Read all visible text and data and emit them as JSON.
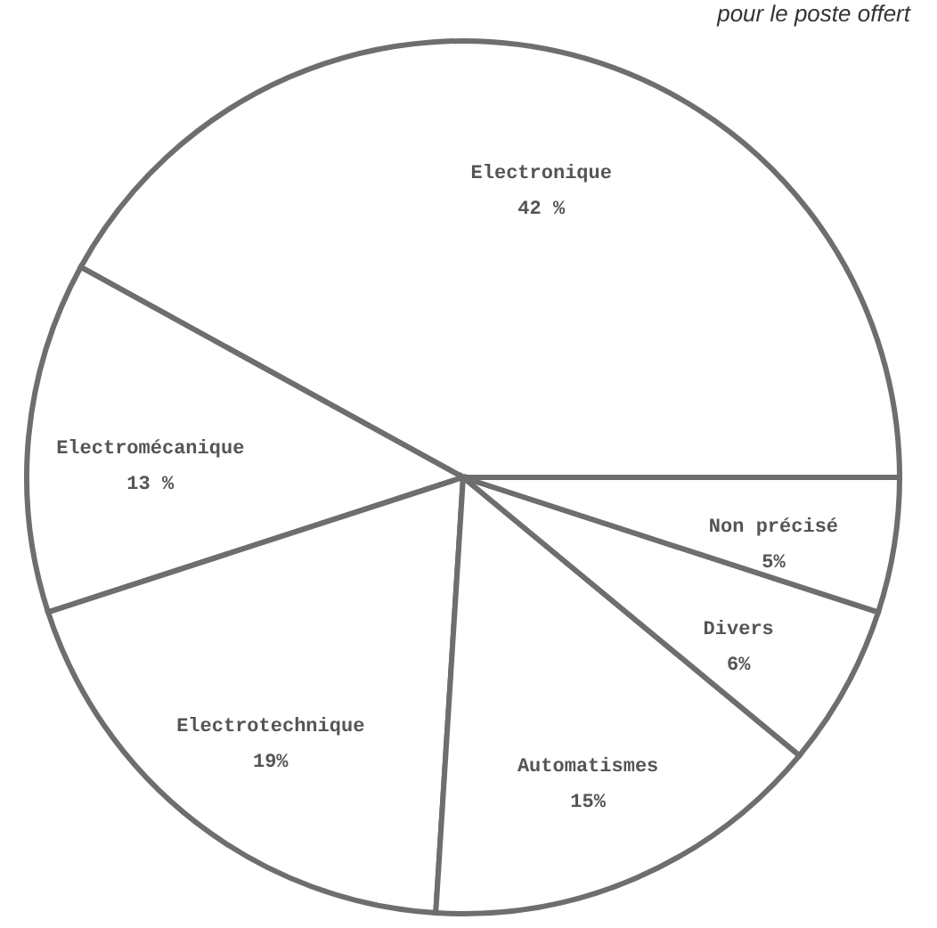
{
  "chart_data": {
    "type": "pie",
    "title": "pour le poste offert",
    "categories": [
      "Electronique",
      "Electromécanique",
      "Electrotechnique",
      "Automatismes",
      "Divers",
      "Non précisé"
    ],
    "values": [
      42,
      13,
      19,
      15,
      6,
      5
    ],
    "value_labels": [
      "42 %",
      "13 %",
      "19%",
      "15%",
      "6%",
      "5%"
    ],
    "colors": [
      "#ffffff",
      "#ffffff",
      "#ffffff",
      "#ffffff",
      "#ffffff",
      "#ffffff"
    ],
    "legend": false
  }
}
